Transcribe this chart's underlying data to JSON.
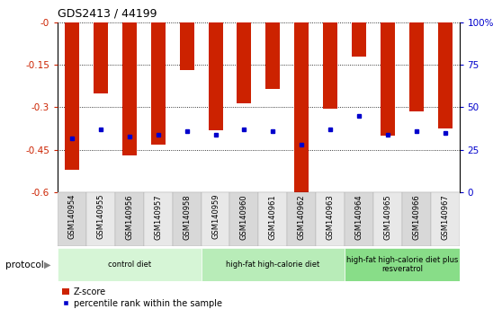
{
  "title": "GDS2413 / 44199",
  "samples": [
    "GSM140954",
    "GSM140955",
    "GSM140956",
    "GSM140957",
    "GSM140958",
    "GSM140959",
    "GSM140960",
    "GSM140961",
    "GSM140962",
    "GSM140963",
    "GSM140964",
    "GSM140965",
    "GSM140966",
    "GSM140967"
  ],
  "z_scores": [
    -0.52,
    -0.25,
    -0.47,
    -0.43,
    -0.17,
    -0.38,
    -0.285,
    -0.235,
    -0.6,
    -0.305,
    -0.12,
    -0.4,
    -0.315,
    -0.375
  ],
  "percentile_ranks": [
    32,
    37,
    33,
    34,
    36,
    34,
    37,
    36,
    28,
    37,
    45,
    34,
    36,
    35
  ],
  "bar_color": "#cc2200",
  "dot_color": "#0000cc",
  "ylim_left": [
    -0.6,
    0.0
  ],
  "ylim_right": [
    0,
    100
  ],
  "yticks_left": [
    0.0,
    -0.15,
    -0.3,
    -0.45,
    -0.6
  ],
  "yticklabels_left": [
    "-0",
    "-0.15",
    "-0.3",
    "-0.45",
    "-0.6"
  ],
  "yticks_right": [
    100,
    75,
    50,
    25,
    0
  ],
  "yticklabels_right": [
    "100%",
    "75",
    "50",
    "25",
    "0"
  ],
  "groups": [
    {
      "label": "control diet",
      "start": 0,
      "end": 5,
      "color": "#d6f5d6"
    },
    {
      "label": "high-fat high-calorie diet",
      "start": 5,
      "end": 10,
      "color": "#b8ecb8"
    },
    {
      "label": "high-fat high-calorie diet plus\nresveratrol",
      "start": 10,
      "end": 14,
      "color": "#88dd88"
    }
  ],
  "protocol_label": "protocol",
  "legend_zscore": "Z-score",
  "legend_percentile": "percentile rank within the sample",
  "bar_color_legend": "#cc2200",
  "dot_color_legend": "#0000cc",
  "tick_color_left": "#cc2200",
  "tick_color_right": "#0000cc",
  "cell_colors": [
    "#d8d8d8",
    "#e8e8e8",
    "#d8d8d8",
    "#e8e8e8",
    "#d8d8d8",
    "#e8e8e8",
    "#d8d8d8",
    "#e8e8e8",
    "#d8d8d8",
    "#e8e8e8",
    "#d8d8d8",
    "#e8e8e8",
    "#d8d8d8",
    "#e8e8e8"
  ]
}
